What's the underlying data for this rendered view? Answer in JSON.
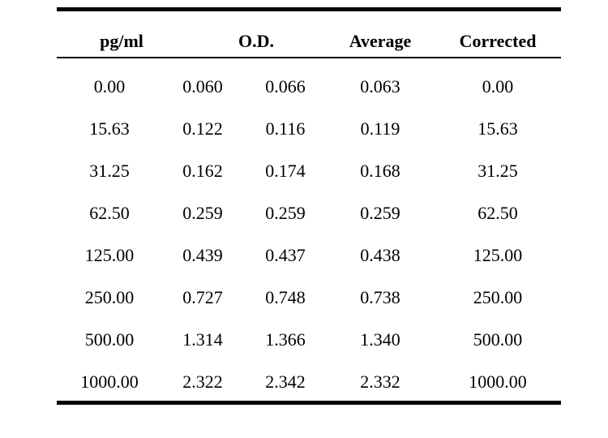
{
  "table": {
    "headers": {
      "conc": "pg/ml",
      "od": "O.D.",
      "average": "Average",
      "corrected": "Corrected"
    },
    "rows": [
      {
        "conc": "0.00",
        "od1": "0.060",
        "od2": "0.066",
        "average": "0.063",
        "corrected": "0.00"
      },
      {
        "conc": "15.63",
        "od1": "0.122",
        "od2": "0.116",
        "average": "0.119",
        "corrected": "15.63"
      },
      {
        "conc": "31.25",
        "od1": "0.162",
        "od2": "0.174",
        "average": "0.168",
        "corrected": "31.25"
      },
      {
        "conc": "62.50",
        "od1": "0.259",
        "od2": "0.259",
        "average": "0.259",
        "corrected": "62.50"
      },
      {
        "conc": "125.00",
        "od1": "0.439",
        "od2": "0.437",
        "average": "0.438",
        "corrected": "125.00"
      },
      {
        "conc": "250.00",
        "od1": "0.727",
        "od2": "0.748",
        "average": "0.738",
        "corrected": "250.00"
      },
      {
        "conc": "500.00",
        "od1": "1.314",
        "od2": "1.366",
        "average": "1.340",
        "corrected": "500.00"
      },
      {
        "conc": "1000.00",
        "od1": "2.322",
        "od2": "2.342",
        "average": "2.332",
        "corrected": "1000.00"
      }
    ]
  }
}
